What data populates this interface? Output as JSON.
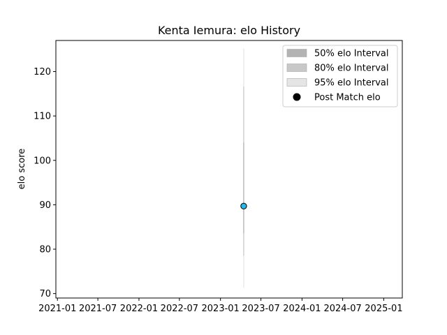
{
  "chart_data": {
    "type": "line",
    "title": "Kenta Iemura: elo History",
    "xlabel": "",
    "ylabel": "elo score",
    "x_ticks": [
      "2021-01",
      "2021-07",
      "2022-01",
      "2022-07",
      "2023-01",
      "2023-07",
      "2024-01",
      "2024-07",
      "2025-01"
    ],
    "y_ticks": [
      70,
      80,
      90,
      100,
      110,
      120
    ],
    "xlim": [
      "2020-12-25",
      "2025-03-25"
    ],
    "ylim": [
      69,
      127
    ],
    "grid": false,
    "legend_position": "top-right",
    "colors": {
      "point": "#29b6e8",
      "point_edge": "#000000",
      "band50": "#b3b3b3",
      "band80": "#c8c8c8",
      "band95": "#e5e5e5"
    },
    "series": [
      {
        "name": "Post Match elo",
        "points": [
          {
            "x": "2023-04-15",
            "y": 89.7
          }
        ]
      }
    ],
    "intervals": [
      {
        "name": "95% elo Interval",
        "x": "2023-04-15",
        "low": 71.3,
        "high": 125.2
      },
      {
        "name": "80% elo Interval",
        "x": "2023-04-15",
        "low": 78.5,
        "high": 116.6
      },
      {
        "name": "50% elo Interval",
        "x": "2023-04-15",
        "low": 83.6,
        "high": 104.0
      }
    ],
    "legend": [
      {
        "label": "50% elo Interval",
        "kind": "band",
        "color": "#b3b3b3"
      },
      {
        "label": "80% elo Interval",
        "kind": "band",
        "color": "#c8c8c8"
      },
      {
        "label": "95% elo Interval",
        "kind": "band",
        "color": "#e5e5e5"
      },
      {
        "label": "Post Match elo",
        "kind": "marker",
        "color": "#000000"
      }
    ]
  }
}
